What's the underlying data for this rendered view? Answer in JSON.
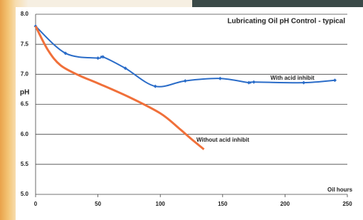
{
  "chart_data": {
    "type": "line",
    "title": "Lubricating Oil pH Control - typical",
    "y_label": "pH",
    "x_label": "Oil hours",
    "series": [
      {
        "name": "With acid inhibit",
        "color": "#2a6cc8",
        "markers": true,
        "x": [
          0,
          24,
          50,
          54,
          72,
          96,
          120,
          148,
          171,
          175,
          215,
          240
        ],
        "values": [
          7.8,
          7.35,
          7.27,
          7.29,
          7.1,
          6.8,
          6.89,
          6.93,
          6.86,
          6.87,
          6.86,
          6.9
        ]
      },
      {
        "name": "Without acid inhibit",
        "color": "#f0703a",
        "markers": false,
        "x": [
          0,
          10,
          20,
          35,
          50,
          75,
          100,
          115,
          125,
          135
        ],
        "values": [
          7.8,
          7.4,
          7.15,
          6.98,
          6.85,
          6.62,
          6.35,
          6.1,
          5.92,
          5.75
        ]
      }
    ],
    "xlim": [
      0,
      250
    ],
    "xticks": [
      0,
      50,
      100,
      150,
      200,
      250
    ],
    "ylim": [
      5,
      8
    ],
    "yticks": [
      {
        "value": 5,
        "label": "5.0"
      },
      5.5,
      {
        "value": 6,
        "label": "6.0"
      },
      6.5,
      {
        "value": 7,
        "label": "7.0"
      },
      7.5,
      {
        "value": 8,
        "label": "8.0"
      }
    ],
    "grid": true
  }
}
